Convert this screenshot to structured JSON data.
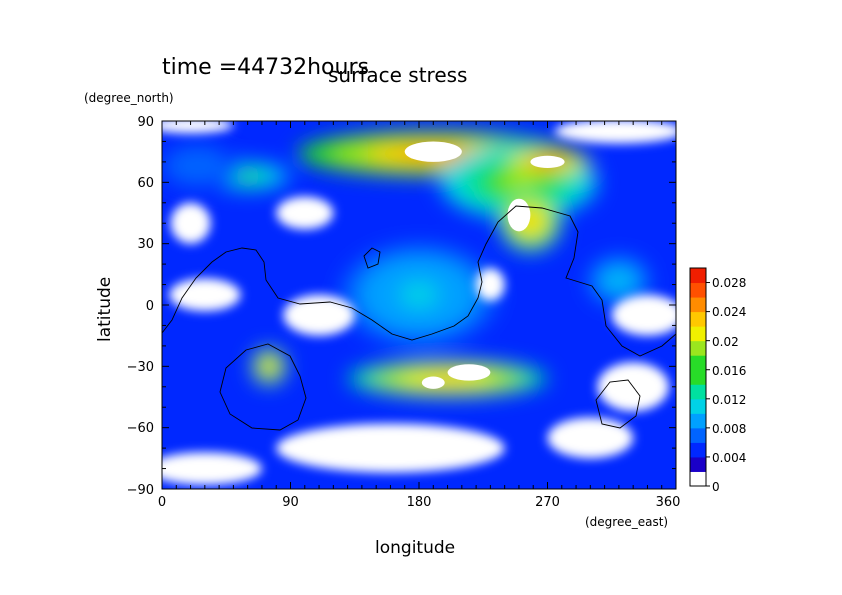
{
  "chart_data": {
    "type": "heatmap",
    "title": "surface stress",
    "time_label": "time =44732hours",
    "xlabel": "longitude",
    "ylabel": "latitude",
    "xunit": "(degree_east)",
    "yunit": "(degree_north)",
    "xlim": [
      0,
      360
    ],
    "ylim": [
      -90,
      90
    ],
    "xticks": [
      "0",
      "90",
      "180",
      "270",
      "360"
    ],
    "yticks": [
      "90",
      "60",
      "30",
      "0",
      "−30",
      "−60",
      "−90"
    ],
    "colorbar": {
      "min": 0,
      "max": 0.03,
      "levels": [
        "0",
        "0.004",
        "0.008",
        "0.012",
        "0.016",
        "0.02",
        "0.024",
        "0.028"
      ],
      "colors": [
        "#ffffff",
        "#1a00c8",
        "#0028ff",
        "#0064ff",
        "#00a0ff",
        "#00d2e6",
        "#00e0a0",
        "#28dc28",
        "#9be61e",
        "#f0f000",
        "#ffc800",
        "#ff8c00",
        "#ff5000",
        "#f01e00"
      ]
    },
    "regions": [
      {
        "lon": 190,
        "lat": 74,
        "rx": 95,
        "ry": 11,
        "value": 0.026
      },
      {
        "lon": 250,
        "lat": 60,
        "rx": 55,
        "ry": 18,
        "value": 0.018
      },
      {
        "lon": 270,
        "lat": 70,
        "rx": 30,
        "ry": 6,
        "value": 0.03
      },
      {
        "lon": 258,
        "lat": 41,
        "rx": 22,
        "ry": 15,
        "value": 0.024
      },
      {
        "lon": 200,
        "lat": -36,
        "rx": 70,
        "ry": 9,
        "value": 0.024
      },
      {
        "lon": 75,
        "lat": -30,
        "rx": 12,
        "ry": 9,
        "value": 0.024
      },
      {
        "lon": 60,
        "lat": 63,
        "rx": 30,
        "ry": 7,
        "value": 0.016
      },
      {
        "lon": 180,
        "lat": 5,
        "rx": 55,
        "ry": 25,
        "value": 0.012
      },
      {
        "lon": 320,
        "lat": 12,
        "rx": 22,
        "ry": 12,
        "value": 0.012
      },
      {
        "lon": 25,
        "lat": 68,
        "rx": 30,
        "ry": 12,
        "value": 0.008
      }
    ],
    "background_value": 0.004
  }
}
